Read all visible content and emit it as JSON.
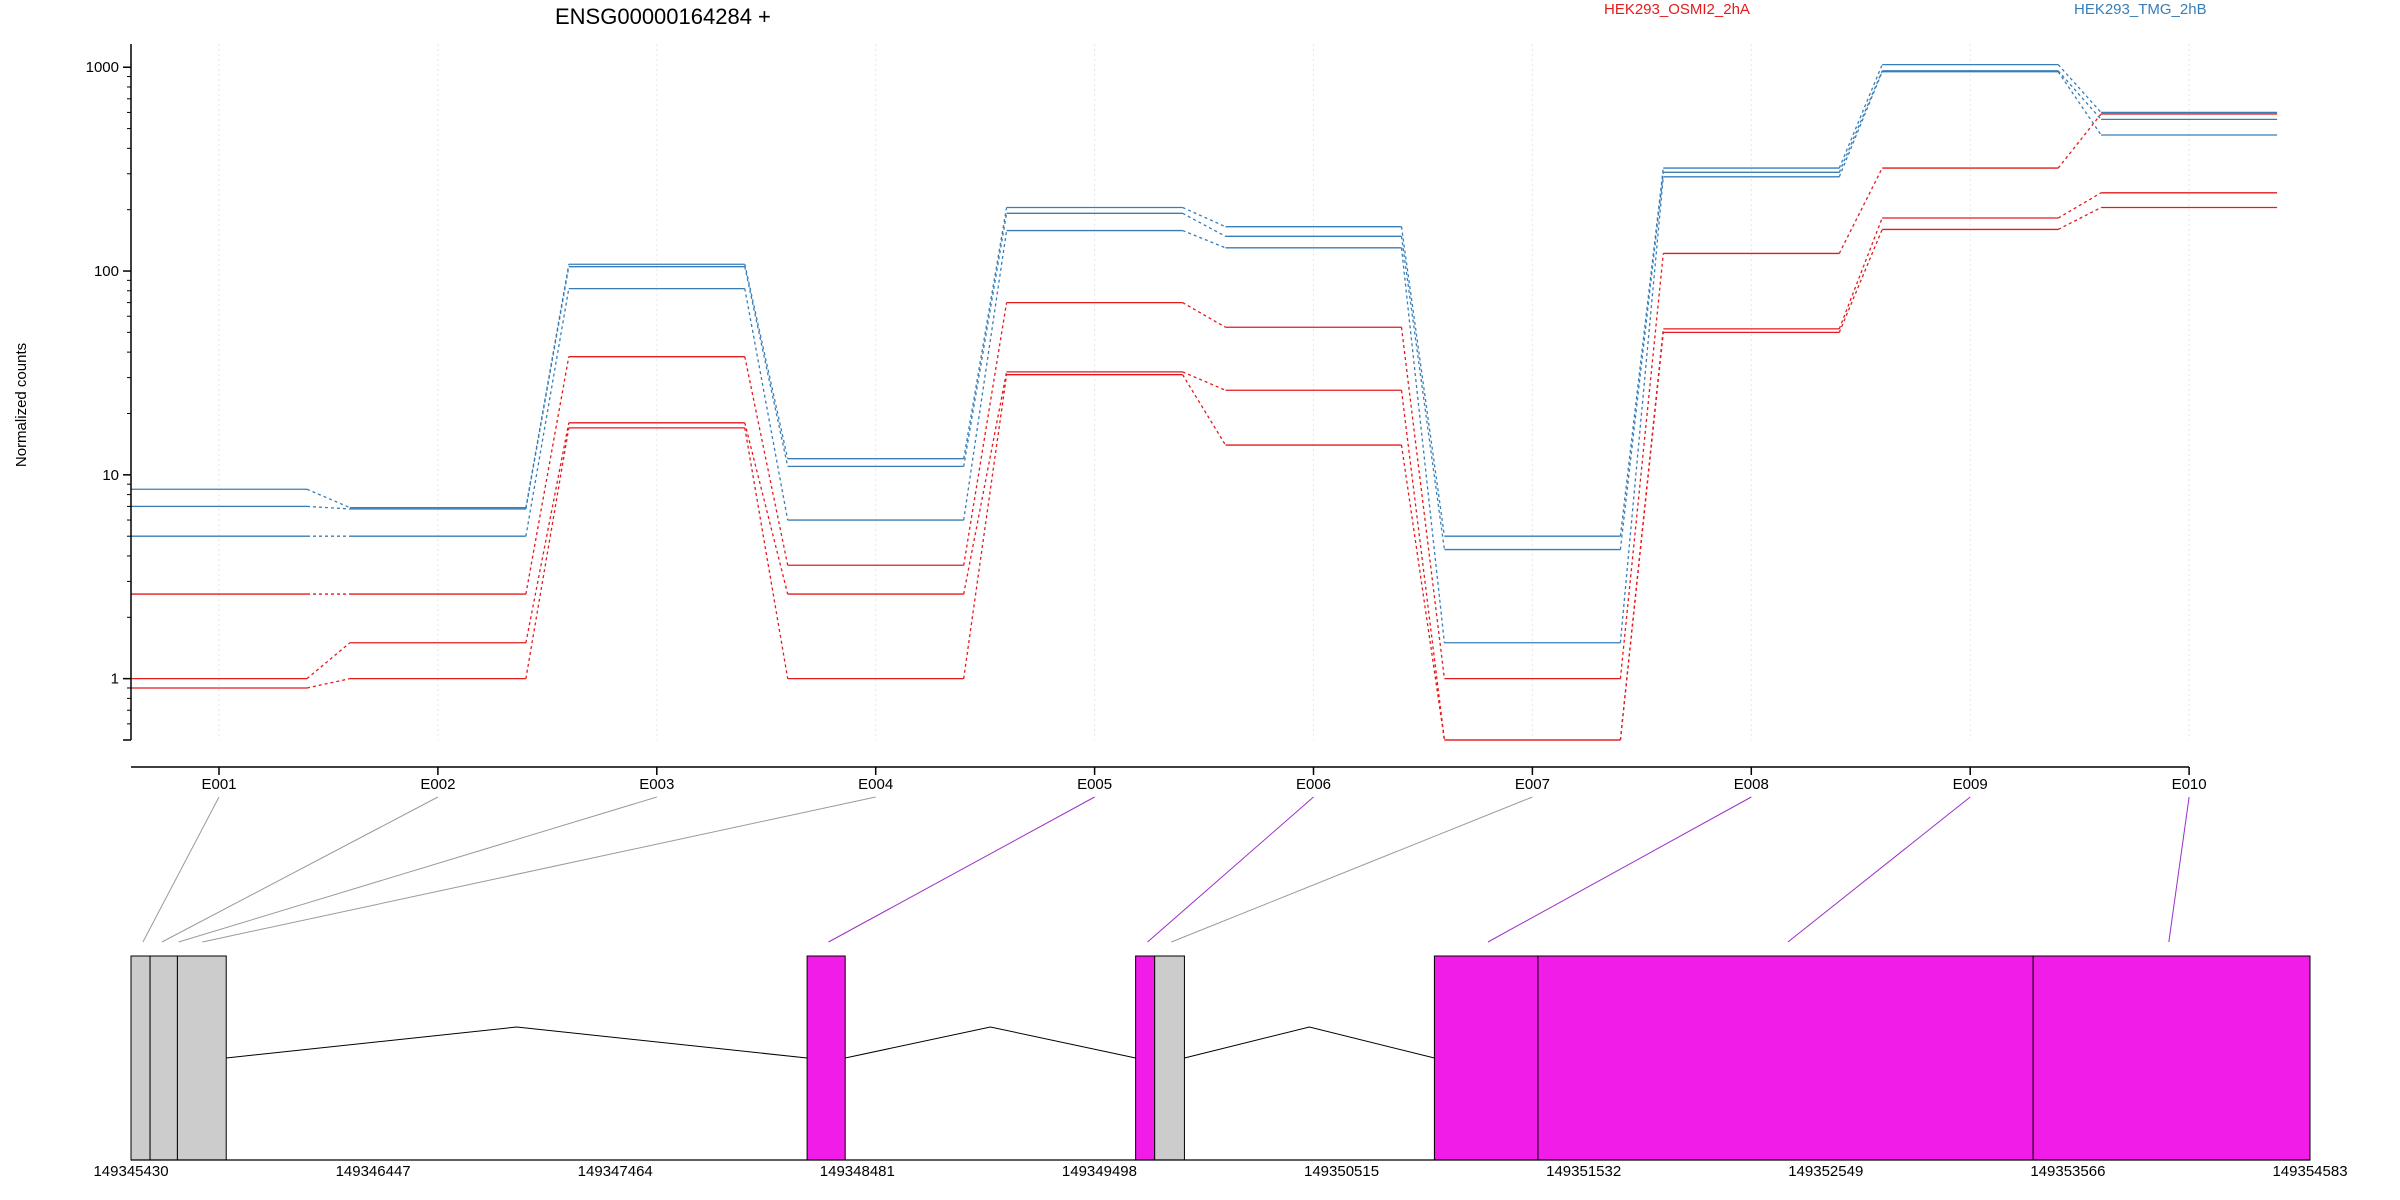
{
  "chart_data": {
    "type": "line",
    "title": "ENSG00000164284 +",
    "xlabel": "",
    "ylabel": "Normalized counts",
    "yscale": "log",
    "ylim": [
      0.5,
      1300
    ],
    "yticks": [
      1,
      10,
      100,
      1000
    ],
    "ytick_labels": [
      "1",
      "10",
      "100",
      "1000"
    ],
    "grid": "vertical, light dotted",
    "legend_position": "top",
    "categories": [
      "E001",
      "E002",
      "E003",
      "E004",
      "E005",
      "E006",
      "E007",
      "E008",
      "E009",
      "E010"
    ],
    "groups": [
      {
        "name": "HEK293_OSMI2_2hA",
        "color": "#e41a1c"
      },
      {
        "name": "HEK293_TMG_2hB",
        "color": "#377eb8"
      }
    ],
    "series": [
      {
        "group": 0,
        "values": [
          2.6,
          2.6,
          38,
          3.6,
          70,
          53,
          1.0,
          122,
          320,
          590
        ]
      },
      {
        "group": 0,
        "values": [
          1.0,
          1.5,
          18,
          2.6,
          32,
          26,
          0.5,
          52,
          182,
          242
        ]
      },
      {
        "group": 0,
        "values": [
          0.9,
          1.0,
          17,
          1.0,
          31,
          14,
          0.5,
          50,
          160,
          205
        ]
      },
      {
        "group": 1,
        "values": [
          8.5,
          6.9,
          108,
          12,
          205,
          165,
          5.0,
          320,
          1030,
          600
        ]
      },
      {
        "group": 1,
        "values": [
          7.0,
          6.8,
          105,
          11,
          192,
          148,
          4.3,
          305,
          960,
          555
        ]
      },
      {
        "group": 1,
        "values": [
          5.0,
          5.0,
          82,
          6.0,
          158,
          130,
          1.5,
          290,
          950,
          465
        ]
      }
    ],
    "gene_model": {
      "axis_ticks": [
        "149345430",
        "149346447",
        "149347464",
        "149348481",
        "149349498",
        "149350515",
        "149351532",
        "149352549",
        "149353566",
        "149354583"
      ],
      "range": [
        149345430,
        149354583
      ],
      "exons": [
        {
          "start": 149345430,
          "end": 149345510,
          "color": "#cccccc"
        },
        {
          "start": 149345510,
          "end": 149345625,
          "color": "#cccccc"
        },
        {
          "start": 149345625,
          "end": 149345830,
          "color": "#cccccc"
        },
        {
          "start": 149348270,
          "end": 149348430,
          "color": "#f21ce8"
        },
        {
          "start": 149349650,
          "end": 149349730,
          "color": "#f21ce8"
        },
        {
          "start": 149349730,
          "end": 149349855,
          "color": "#cccccc"
        },
        {
          "start": 149350905,
          "end": 149351340,
          "color": "#f21ce8"
        },
        {
          "start": 149351340,
          "end": 149353420,
          "color": "#f21ce8"
        },
        {
          "start": 149353420,
          "end": 149354583,
          "color": "#f21ce8"
        }
      ],
      "introns": [
        {
          "start": 149345830,
          "end": 149348270
        },
        {
          "start": 149348430,
          "end": 149349650
        },
        {
          "start": 149349855,
          "end": 149350905
        }
      ],
      "connectors": [
        {
          "bin": 0,
          "pos": 149345480,
          "highlight": false
        },
        {
          "bin": 1,
          "pos": 149345560,
          "highlight": false
        },
        {
          "bin": 2,
          "pos": 149345630,
          "highlight": false
        },
        {
          "bin": 3,
          "pos": 149345730,
          "highlight": false
        },
        {
          "bin": 4,
          "pos": 149348360,
          "highlight": true
        },
        {
          "bin": 5,
          "pos": 149349700,
          "highlight": true
        },
        {
          "bin": 6,
          "pos": 149349800,
          "highlight": false
        },
        {
          "bin": 7,
          "pos": 149351130,
          "highlight": true
        },
        {
          "bin": 8,
          "pos": 149352390,
          "highlight": true
        },
        {
          "bin": 9,
          "pos": 149353990,
          "highlight": true
        }
      ]
    }
  }
}
